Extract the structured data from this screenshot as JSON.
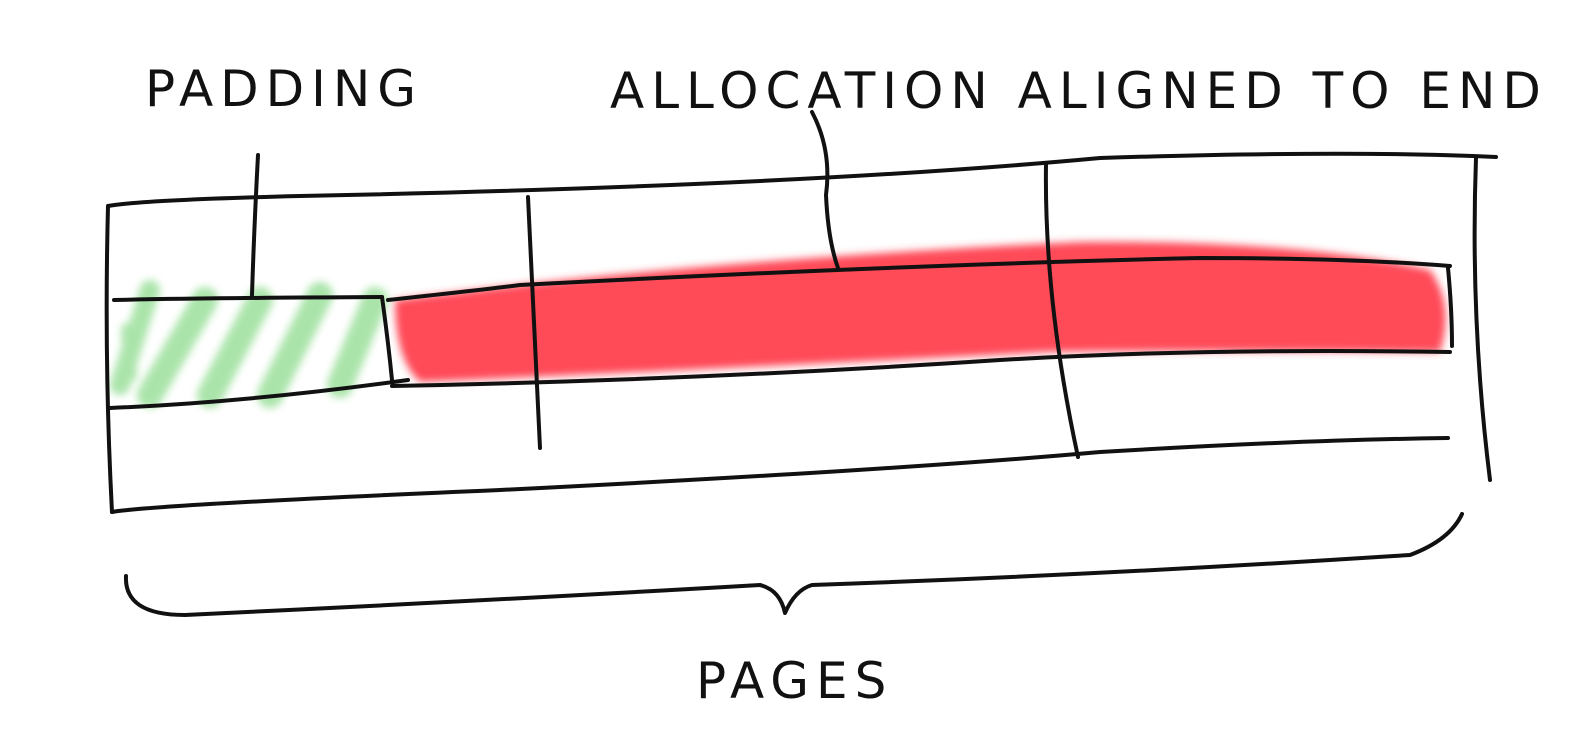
{
  "labels": {
    "padding": "PADDING",
    "allocation": "ALLOCATION ALIGNED TO END",
    "pages": "PAGES"
  },
  "colors": {
    "padding_fill": "#8fdc8f",
    "allocation_fill": "#ff3b4a",
    "ink": "#111111"
  }
}
